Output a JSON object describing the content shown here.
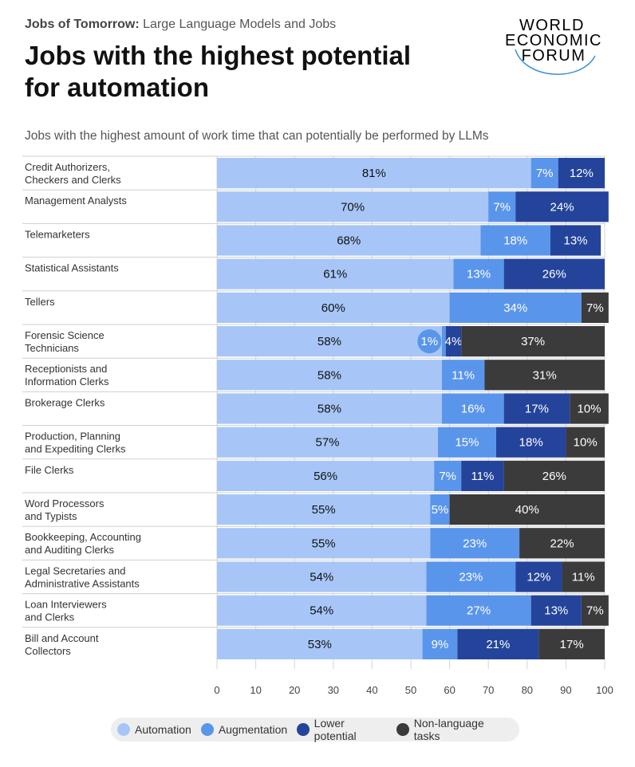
{
  "header": {
    "kicker_bold": "Jobs of Tomorrow:",
    "kicker_rest": "Large Language Models and Jobs",
    "title_line1": "Jobs with the highest potential",
    "title_line2": "for automation",
    "logo_line1": "WORLD",
    "logo_line2": "ECONOMIC",
    "logo_line3": "FORUM"
  },
  "colors": {
    "automation": "#a7c6f7",
    "augmentation": "#5a95ec",
    "lower_potential": "#24449b",
    "non_language": "#3b3b3b"
  },
  "chart_data": {
    "type": "bar",
    "orientation": "horizontal",
    "stacked": true,
    "subtitle": "Jobs with the highest amount of work time that can potentially be performed by LLMs",
    "categories": [
      [
        "Credit Authorizers,",
        "Checkers and Clerks"
      ],
      [
        "Management Analysts"
      ],
      [
        "Telemarketers"
      ],
      [
        "Statistical Assistants"
      ],
      [
        "Tellers"
      ],
      [
        "Forensic Science",
        "Technicians"
      ],
      [
        "Receptionists and",
        "Information Clerks"
      ],
      [
        "Brokerage Clerks"
      ],
      [
        "Production, Planning",
        "and Expediting Clerks"
      ],
      [
        "File Clerks"
      ],
      [
        "Word Processors",
        "and Typists"
      ],
      [
        "Bookkeeping, Accounting",
        "and Auditing Clerks"
      ],
      [
        "Legal Secretaries and",
        "Administrative Assistants"
      ],
      [
        "Loan Interviewers",
        "and Clerks"
      ],
      [
        "Bill and Account",
        "Collectors"
      ]
    ],
    "series": [
      {
        "name": "Automation",
        "color_key": "automation",
        "label_color": "#111111",
        "values": [
          81,
          70,
          68,
          61,
          60,
          58,
          58,
          58,
          57,
          56,
          55,
          55,
          54,
          54,
          53
        ]
      },
      {
        "name": "Augmentation",
        "color_key": "augmentation",
        "label_color": "#ffffff",
        "values": [
          7,
          7,
          18,
          13,
          34,
          1,
          11,
          16,
          15,
          7,
          5,
          23,
          23,
          27,
          9
        ]
      },
      {
        "name": "Lower potential",
        "color_key": "lower_potential",
        "label_color": "#ffffff",
        "values": [
          12,
          24,
          13,
          26,
          0,
          4,
          0,
          17,
          18,
          11,
          0,
          0,
          12,
          13,
          21
        ]
      },
      {
        "name": "Non-language tasks",
        "color_key": "non_language",
        "label_color": "#ffffff",
        "values": [
          0,
          0,
          0,
          0,
          7,
          37,
          31,
          10,
          10,
          26,
          40,
          22,
          11,
          7,
          17
        ]
      }
    ],
    "xlim": [
      0,
      100
    ],
    "xticks": [
      0,
      10,
      20,
      30,
      40,
      50,
      60,
      70,
      80,
      90,
      100
    ],
    "grid": true,
    "legend_position": "bottom"
  }
}
